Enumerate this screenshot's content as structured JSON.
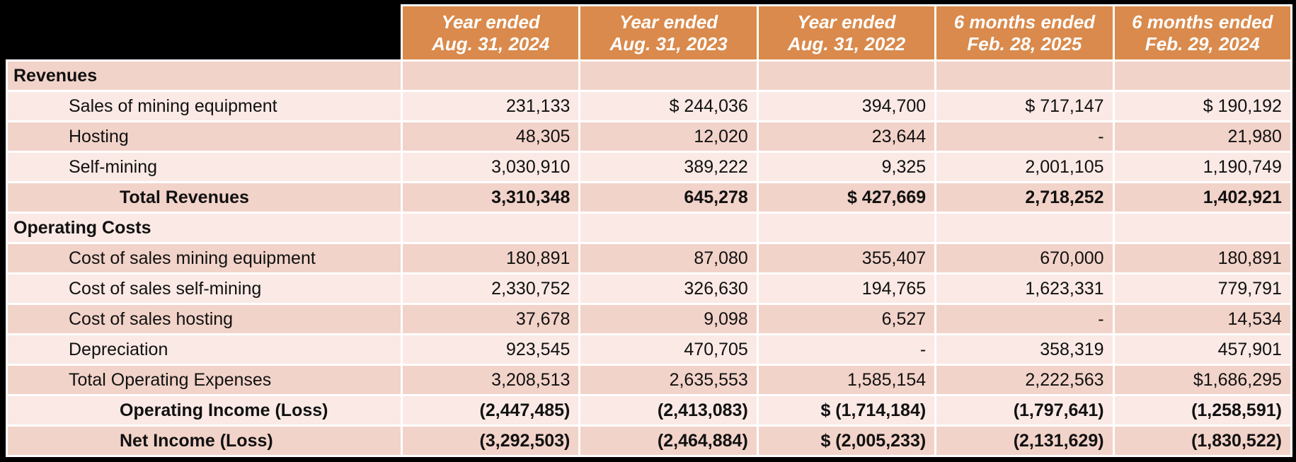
{
  "headers": [
    {
      "line1": "Year ended",
      "line2": "Aug. 31, 2024"
    },
    {
      "line1": "Year ended",
      "line2": "Aug. 31, 2023"
    },
    {
      "line1": "Year ended",
      "line2": "Aug. 31, 2022"
    },
    {
      "line1": "6 months ended",
      "line2": "Feb. 28, 2025"
    },
    {
      "line1": "6 months ended",
      "line2": "Feb. 29, 2024"
    }
  ],
  "rows": [
    {
      "label": "Revenues",
      "values": [
        "",
        "",
        "",
        "",
        ""
      ]
    },
    {
      "label": "Sales of mining equipment",
      "values": [
        "231,133",
        "$ 244,036",
        "394,700",
        "$ 717,147",
        "$ 190,192"
      ]
    },
    {
      "label": "Hosting",
      "values": [
        "48,305",
        "12,020",
        "23,644",
        "-",
        "21,980"
      ]
    },
    {
      "label": "Self-mining",
      "values": [
        "3,030,910",
        "389,222",
        "9,325",
        "2,001,105",
        "1,190,749"
      ]
    },
    {
      "label": "Total Revenues",
      "values": [
        "3,310,348",
        "645,278",
        "$ 427,669",
        "2,718,252",
        "1,402,921"
      ]
    },
    {
      "label": "Operating Costs",
      "values": [
        "",
        "",
        "",
        "",
        ""
      ]
    },
    {
      "label": "Cost of sales mining equipment",
      "values": [
        "180,891",
        "87,080",
        "355,407",
        "670,000",
        "180,891"
      ]
    },
    {
      "label": "Cost of sales self-mining",
      "values": [
        "2,330,752",
        "326,630",
        "194,765",
        "1,623,331",
        "779,791"
      ]
    },
    {
      "label": "Cost of sales hosting",
      "values": [
        "37,678",
        "9,098",
        "6,527",
        "-",
        "14,534"
      ]
    },
    {
      "label": "Depreciation",
      "values": [
        "923,545",
        "470,705",
        "-",
        "358,319",
        "457,901"
      ]
    },
    {
      "label": "Total Operating Expenses",
      "values": [
        "3,208,513",
        "2,635,553",
        "1,585,154",
        "2,222,563",
        "$1,686,295"
      ]
    },
    {
      "label": "Operating Income (Loss)",
      "values": [
        "(2,447,485)",
        "(2,413,083)",
        "$ (1,714,184)",
        "(1,797,641)",
        "(1,258,591)"
      ]
    },
    {
      "label": "Net Income (Loss)",
      "values": [
        "(3,292,503)",
        "(2,464,884)",
        "$ (2,005,233)",
        "(2,131,629)",
        "(1,830,522)"
      ]
    }
  ],
  "colors": {
    "header_bg": "#d98a4c",
    "row_dark": "#f2d3c9",
    "row_light": "#fae9e5",
    "background": "#000000"
  }
}
